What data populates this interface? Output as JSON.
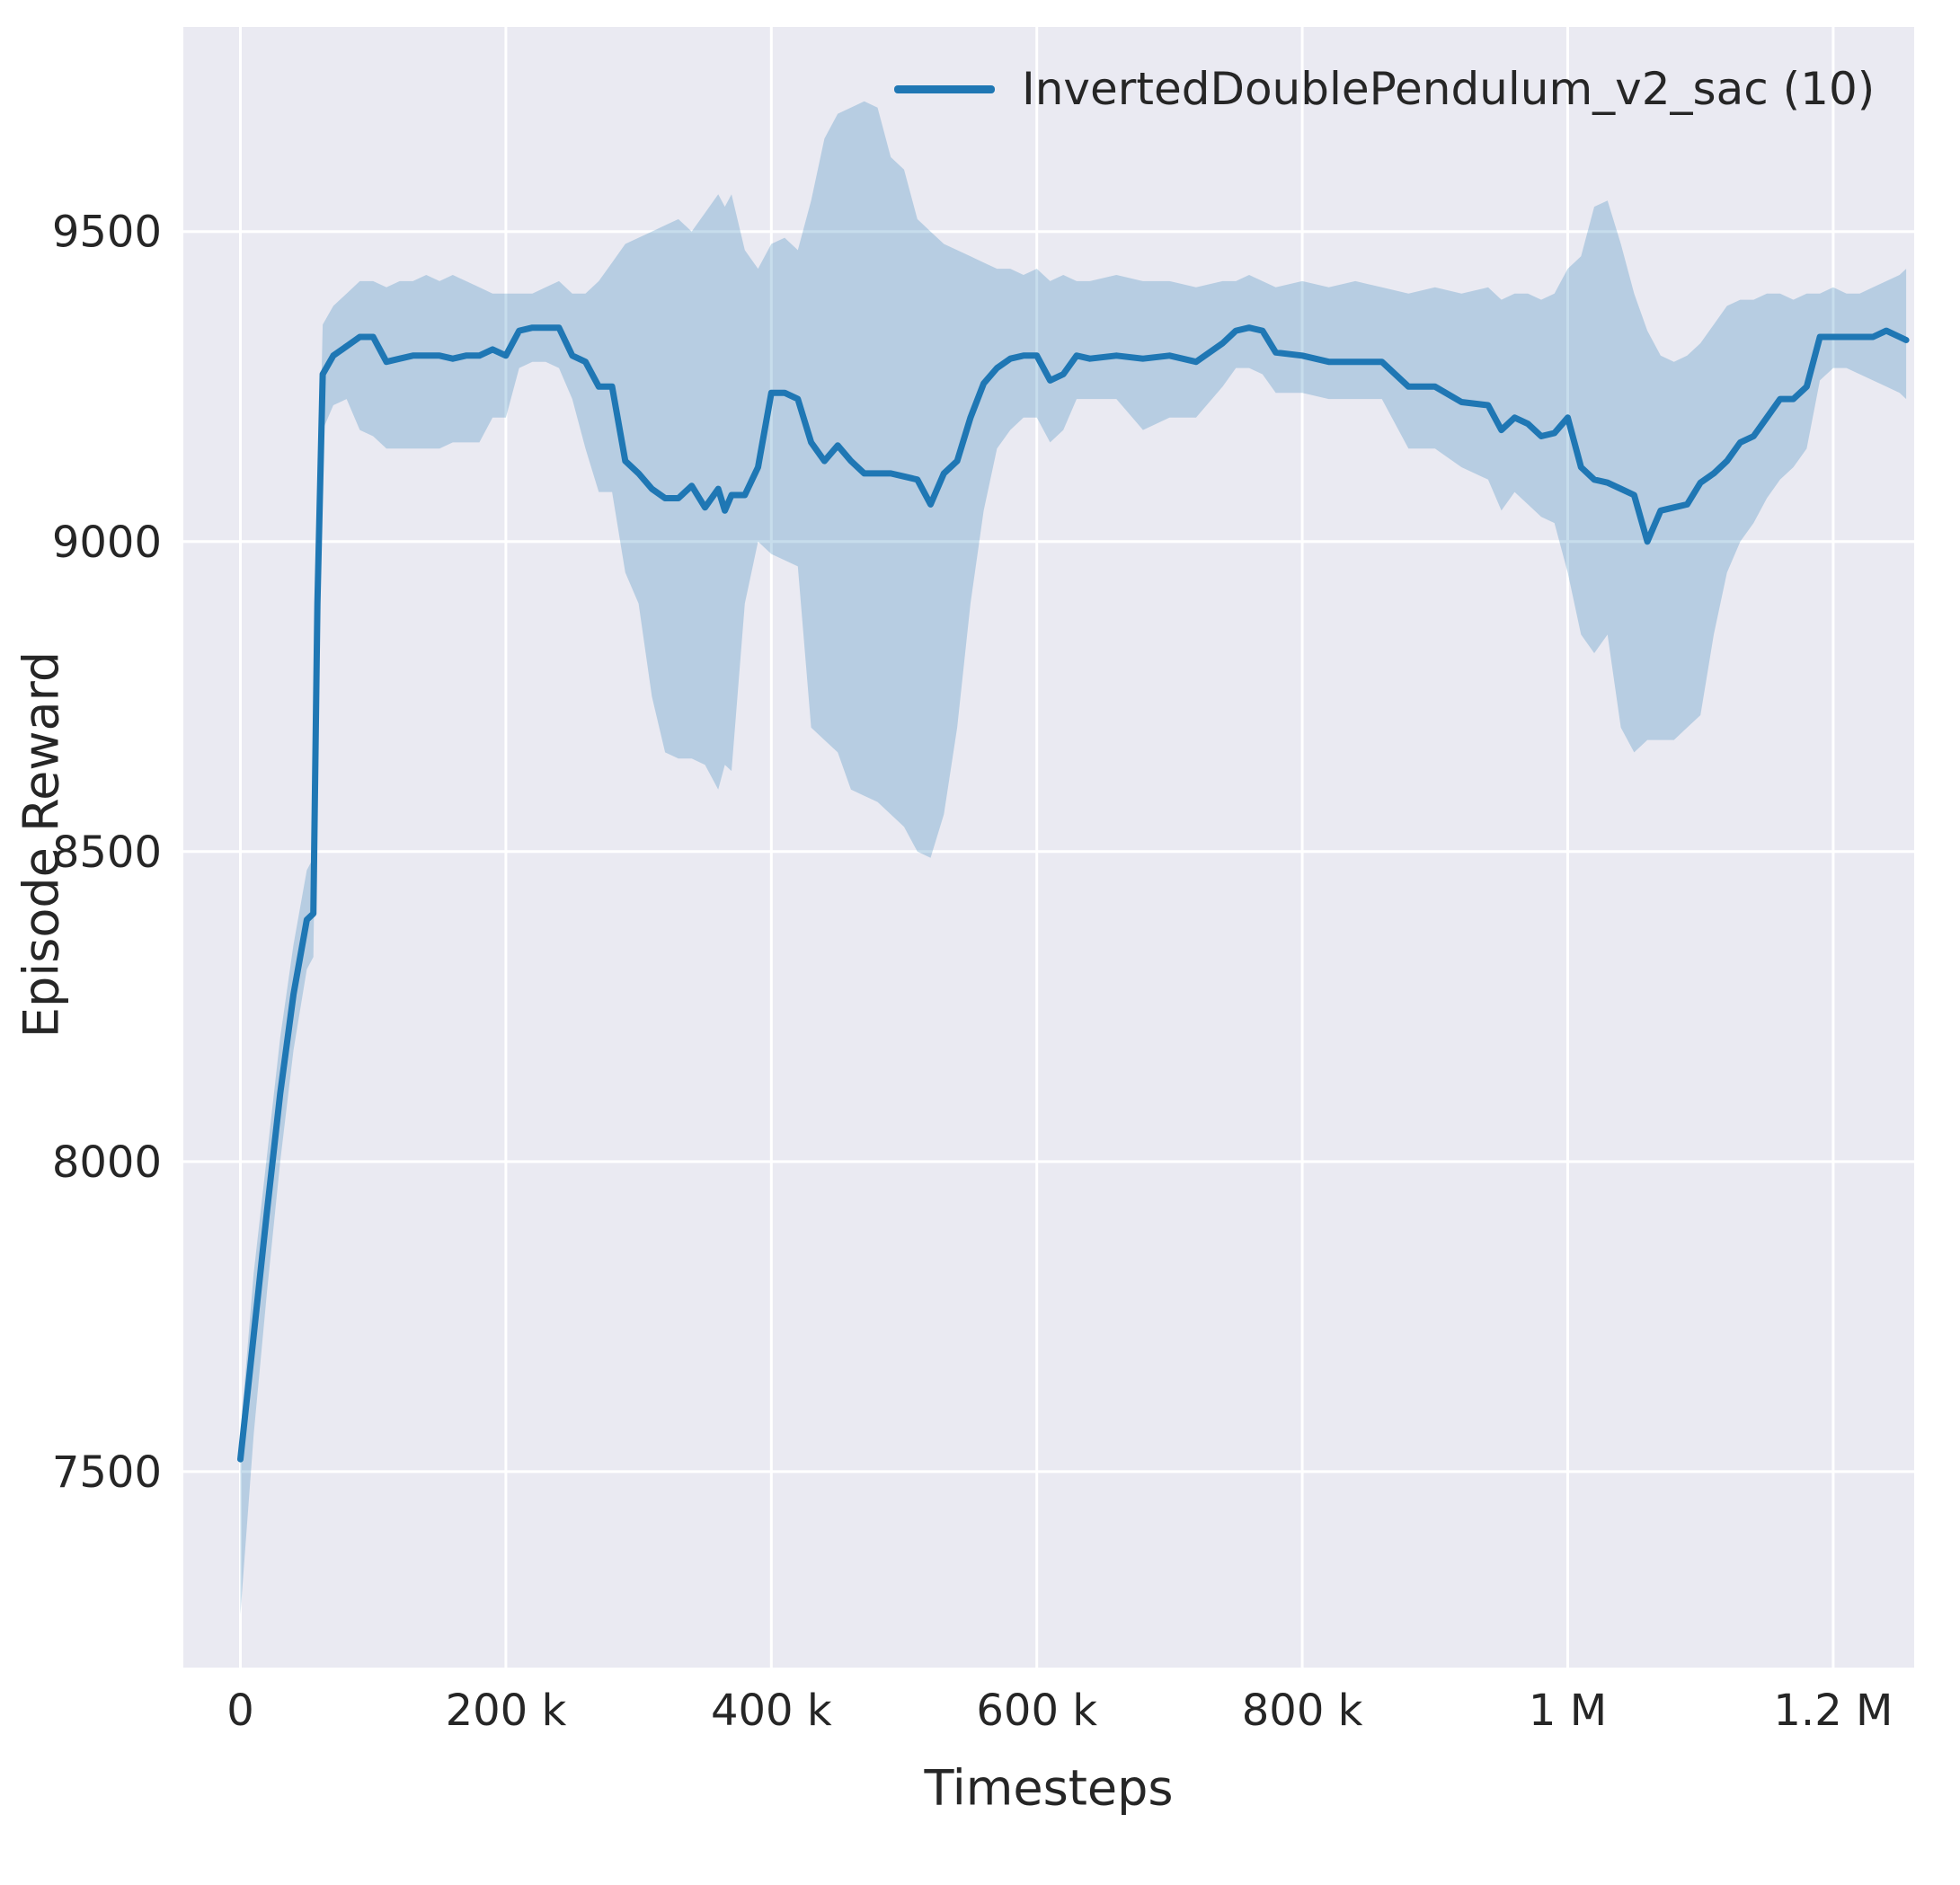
{
  "chart_data": {
    "type": "line",
    "title": "",
    "xlabel": "Timesteps",
    "ylabel": "Episode Reward",
    "grid": true,
    "legend_position": "upper right",
    "plot_background": "#eaeaf2",
    "grid_color": "#ffffff",
    "text_color": "#262626",
    "xlim": [
      -43000,
      1261000
    ],
    "ylim": [
      7184,
      9830
    ],
    "x_ticks": {
      "positions": [
        0,
        200000,
        400000,
        600000,
        800000,
        1000000,
        1200000
      ],
      "labels": [
        "0",
        "200 k",
        "400 k",
        "600 k",
        "800 k",
        "1 M",
        "1.2 M"
      ]
    },
    "y_ticks": {
      "positions": [
        7500,
        8000,
        8500,
        9000,
        9500
      ],
      "labels": [
        "7500",
        "8000",
        "8500",
        "9000",
        "9500"
      ]
    },
    "legend": [
      {
        "label": "InvertedDoublePendulum_v2_sac (10)",
        "color": "#1f77b4"
      }
    ],
    "series": [
      {
        "name": "InvertedDoublePendulum_v2_sac (10)",
        "color": "#1f77b4",
        "band_opacity": 0.25,
        "line_width": 7,
        "columns": [
          "timestep",
          "mean_reward",
          "band_low",
          "band_high"
        ],
        "data": [
          [
            0,
            7520,
            7270,
            7560
          ],
          [
            10000,
            7720,
            7560,
            7820
          ],
          [
            20000,
            7920,
            7790,
            8010
          ],
          [
            30000,
            8110,
            8000,
            8200
          ],
          [
            40000,
            8270,
            8180,
            8350
          ],
          [
            50000,
            8390,
            8310,
            8470
          ],
          [
            55000,
            8400,
            8330,
            8490
          ],
          [
            58000,
            8900,
            8820,
            8980
          ],
          [
            62000,
            9270,
            9180,
            9350
          ],
          [
            70000,
            9300,
            9220,
            9380
          ],
          [
            80000,
            9315,
            9230,
            9400
          ],
          [
            90000,
            9330,
            9180,
            9420
          ],
          [
            100000,
            9330,
            9170,
            9420
          ],
          [
            110000,
            9290,
            9150,
            9410
          ],
          [
            120000,
            9295,
            9150,
            9420
          ],
          [
            130000,
            9300,
            9150,
            9420
          ],
          [
            140000,
            9300,
            9150,
            9430
          ],
          [
            150000,
            9300,
            9150,
            9420
          ],
          [
            160000,
            9295,
            9160,
            9430
          ],
          [
            170000,
            9300,
            9160,
            9420
          ],
          [
            180000,
            9300,
            9160,
            9410
          ],
          [
            190000,
            9310,
            9200,
            9400
          ],
          [
            200000,
            9300,
            9200,
            9400
          ],
          [
            210000,
            9340,
            9280,
            9400
          ],
          [
            220000,
            9345,
            9290,
            9400
          ],
          [
            230000,
            9345,
            9290,
            9410
          ],
          [
            240000,
            9345,
            9280,
            9420
          ],
          [
            250000,
            9300,
            9230,
            9400
          ],
          [
            260000,
            9290,
            9150,
            9400
          ],
          [
            270000,
            9250,
            9080,
            9420
          ],
          [
            280000,
            9250,
            9080,
            9450
          ],
          [
            290000,
            9130,
            8950,
            9480
          ],
          [
            300000,
            9110,
            8900,
            9490
          ],
          [
            310000,
            9085,
            8750,
            9500
          ],
          [
            320000,
            9070,
            8660,
            9510
          ],
          [
            330000,
            9070,
            8650,
            9520
          ],
          [
            340000,
            9090,
            8650,
            9500
          ],
          [
            350000,
            9055,
            8640,
            9530
          ],
          [
            360000,
            9085,
            8600,
            9560
          ],
          [
            365000,
            9050,
            8640,
            9540
          ],
          [
            370000,
            9075,
            8630,
            9560
          ],
          [
            380000,
            9075,
            8900,
            9470
          ],
          [
            390000,
            9120,
            9000,
            9440
          ],
          [
            400000,
            9240,
            8980,
            9480
          ],
          [
            410000,
            9240,
            8970,
            9490
          ],
          [
            420000,
            9230,
            8960,
            9470
          ],
          [
            430000,
            9160,
            8700,
            9550
          ],
          [
            440000,
            9130,
            8680,
            9650
          ],
          [
            450000,
            9155,
            8660,
            9690
          ],
          [
            460000,
            9130,
            8600,
            9700
          ],
          [
            470000,
            9110,
            8590,
            9710
          ],
          [
            480000,
            9110,
            8580,
            9700
          ],
          [
            490000,
            9110,
            8560,
            9620
          ],
          [
            500000,
            9105,
            8540,
            9600
          ],
          [
            510000,
            9100,
            8500,
            9520
          ],
          [
            520000,
            9060,
            8490,
            9500
          ],
          [
            530000,
            9110,
            8560,
            9480
          ],
          [
            540000,
            9130,
            8700,
            9470
          ],
          [
            550000,
            9200,
            8900,
            9460
          ],
          [
            560000,
            9255,
            9050,
            9450
          ],
          [
            570000,
            9280,
            9150,
            9440
          ],
          [
            580000,
            9295,
            9180,
            9440
          ],
          [
            590000,
            9300,
            9200,
            9430
          ],
          [
            600000,
            9300,
            9200,
            9440
          ],
          [
            610000,
            9260,
            9160,
            9420
          ],
          [
            620000,
            9270,
            9180,
            9430
          ],
          [
            630000,
            9300,
            9230,
            9420
          ],
          [
            640000,
            9295,
            9230,
            9420
          ],
          [
            660000,
            9300,
            9230,
            9430
          ],
          [
            680000,
            9295,
            9180,
            9420
          ],
          [
            700000,
            9300,
            9200,
            9420
          ],
          [
            720000,
            9290,
            9200,
            9410
          ],
          [
            740000,
            9320,
            9250,
            9420
          ],
          [
            750000,
            9340,
            9280,
            9420
          ],
          [
            760000,
            9345,
            9280,
            9430
          ],
          [
            770000,
            9340,
            9270,
            9420
          ],
          [
            780000,
            9305,
            9240,
            9410
          ],
          [
            800000,
            9300,
            9240,
            9420
          ],
          [
            820000,
            9290,
            9230,
            9410
          ],
          [
            840000,
            9290,
            9230,
            9420
          ],
          [
            860000,
            9290,
            9230,
            9410
          ],
          [
            880000,
            9250,
            9150,
            9400
          ],
          [
            900000,
            9250,
            9150,
            9410
          ],
          [
            920000,
            9225,
            9120,
            9400
          ],
          [
            940000,
            9220,
            9100,
            9410
          ],
          [
            950000,
            9180,
            9050,
            9390
          ],
          [
            960000,
            9200,
            9080,
            9400
          ],
          [
            970000,
            9190,
            9060,
            9400
          ],
          [
            980000,
            9170,
            9040,
            9390
          ],
          [
            990000,
            9175,
            9030,
            9400
          ],
          [
            1000000,
            9200,
            8950,
            9440
          ],
          [
            1010000,
            9120,
            8850,
            9460
          ],
          [
            1020000,
            9100,
            8820,
            9540
          ],
          [
            1030000,
            9095,
            8850,
            9550
          ],
          [
            1040000,
            9085,
            8700,
            9480
          ],
          [
            1050000,
            9075,
            8660,
            9400
          ],
          [
            1060000,
            9000,
            8680,
            9340
          ],
          [
            1070000,
            9050,
            8680,
            9300
          ],
          [
            1080000,
            9055,
            8680,
            9290
          ],
          [
            1090000,
            9060,
            8700,
            9300
          ],
          [
            1100000,
            9095,
            8720,
            9320
          ],
          [
            1110000,
            9110,
            8850,
            9350
          ],
          [
            1120000,
            9130,
            8950,
            9380
          ],
          [
            1130000,
            9160,
            9000,
            9390
          ],
          [
            1140000,
            9170,
            9030,
            9390
          ],
          [
            1150000,
            9200,
            9070,
            9400
          ],
          [
            1160000,
            9230,
            9100,
            9400
          ],
          [
            1170000,
            9230,
            9120,
            9390
          ],
          [
            1180000,
            9250,
            9150,
            9400
          ],
          [
            1190000,
            9330,
            9260,
            9400
          ],
          [
            1200000,
            9330,
            9280,
            9410
          ],
          [
            1210000,
            9330,
            9280,
            9400
          ],
          [
            1220000,
            9330,
            9270,
            9400
          ],
          [
            1230000,
            9330,
            9260,
            9410
          ],
          [
            1240000,
            9340,
            9250,
            9420
          ],
          [
            1250000,
            9330,
            9240,
            9430
          ],
          [
            1255000,
            9325,
            9230,
            9440
          ]
        ]
      }
    ]
  }
}
